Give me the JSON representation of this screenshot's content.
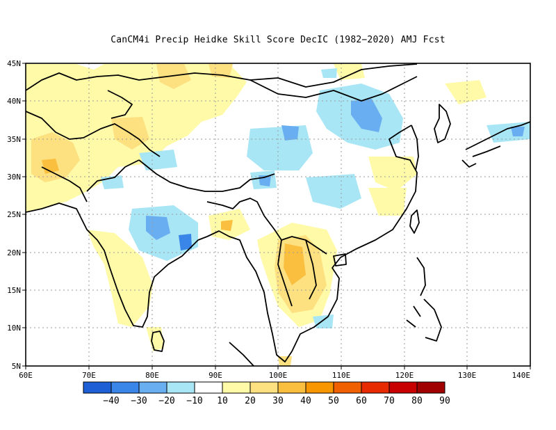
{
  "title": "CanCM4i Precip Heidke Skill Score DecIC (1982−2020) AMJ Fcst",
  "lon_ticks": [
    "60E",
    "70E",
    "80E",
    "90E",
    "100E",
    "110E",
    "120E",
    "130E",
    "140E"
  ],
  "lat_ticks": [
    "45N",
    "40N",
    "35N",
    "30N",
    "25N",
    "20N",
    "15N",
    "10N",
    "5N"
  ],
  "colorbar": {
    "colors": [
      "#1f5fd6",
      "#3a86e8",
      "#6aaef2",
      "#a8e6f5",
      "#ffffff",
      "#fffaa8",
      "#fde080",
      "#fbbf40",
      "#f79600",
      "#f06000",
      "#e82a00",
      "#c80000",
      "#a00000"
    ],
    "labels": [
      "−40",
      "−30",
      "−20",
      "−10",
      "10",
      "20",
      "30",
      "40",
      "50",
      "60",
      "70",
      "80",
      "90"
    ]
  },
  "colors": {
    "ocean": "#ffffff",
    "grid": "#9a9a9a",
    "coast": "#000000"
  }
}
